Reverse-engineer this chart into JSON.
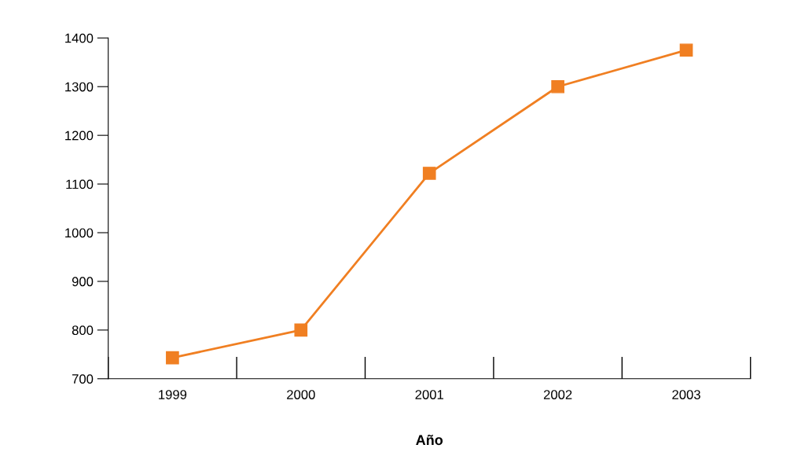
{
  "chart_data": {
    "type": "line",
    "xlabel": "Año",
    "categories": [
      "1999",
      "2000",
      "2001",
      "2002",
      "2003"
    ],
    "series": [
      {
        "color": "#f07f22",
        "values": [
          743,
          800,
          1122,
          1300,
          1375
        ]
      }
    ],
    "ylim": [
      700,
      1400
    ],
    "yticks": [
      700,
      800,
      900,
      1000,
      1100,
      1200,
      1300,
      1400
    ],
    "marker": "square",
    "line_style": "solid",
    "grid": false,
    "legend": false
  }
}
